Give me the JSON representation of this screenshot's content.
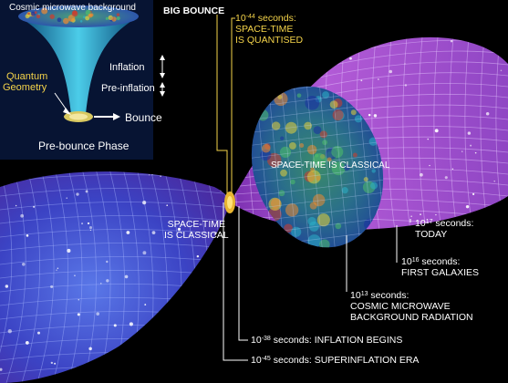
{
  "inset": {
    "cmb_label": "Cosmic microwave background",
    "quantum_geometry_line1": "Quantum",
    "quantum_geometry_line2": "Geometry",
    "inflation": "Inflation",
    "pre_inflation": "Pre-inflation",
    "bounce": "Bounce",
    "phase": "Pre-bounce Phase"
  },
  "big_bounce": "BIG BOUNCE",
  "quantised": {
    "exponent": "-44",
    "unit": "seconds:",
    "line1": "SPACE-TIME",
    "line2": "IS QUANTISED"
  },
  "classical_right": "SPACE-TIME IS CLASSICAL",
  "classical_left_line1": "SPACE-TIME",
  "classical_left_line2": "IS CLASSICAL",
  "timeline": [
    {
      "exponent": "17",
      "unit": "seconds:",
      "desc": "TODAY"
    },
    {
      "exponent": "16",
      "unit": "seconds:",
      "desc": "FIRST GALAXIES"
    },
    {
      "exponent": "13",
      "unit": "seconds:",
      "desc": "COSMIC MICROWAVE",
      "desc2": "BACKGROUND RADIATION"
    },
    {
      "exponent": "-38",
      "unit": "seconds:",
      "desc": "INFLATION BEGINS"
    },
    {
      "exponent": "-45",
      "unit": "seconds:",
      "desc": "SUPERINFLATION ERA"
    }
  ],
  "base": "10",
  "colors": {
    "accent": "#f5d44a",
    "purple": "#a64fc9",
    "blue": "#3a4fd0",
    "inset_bg": "#0a1a3a"
  }
}
